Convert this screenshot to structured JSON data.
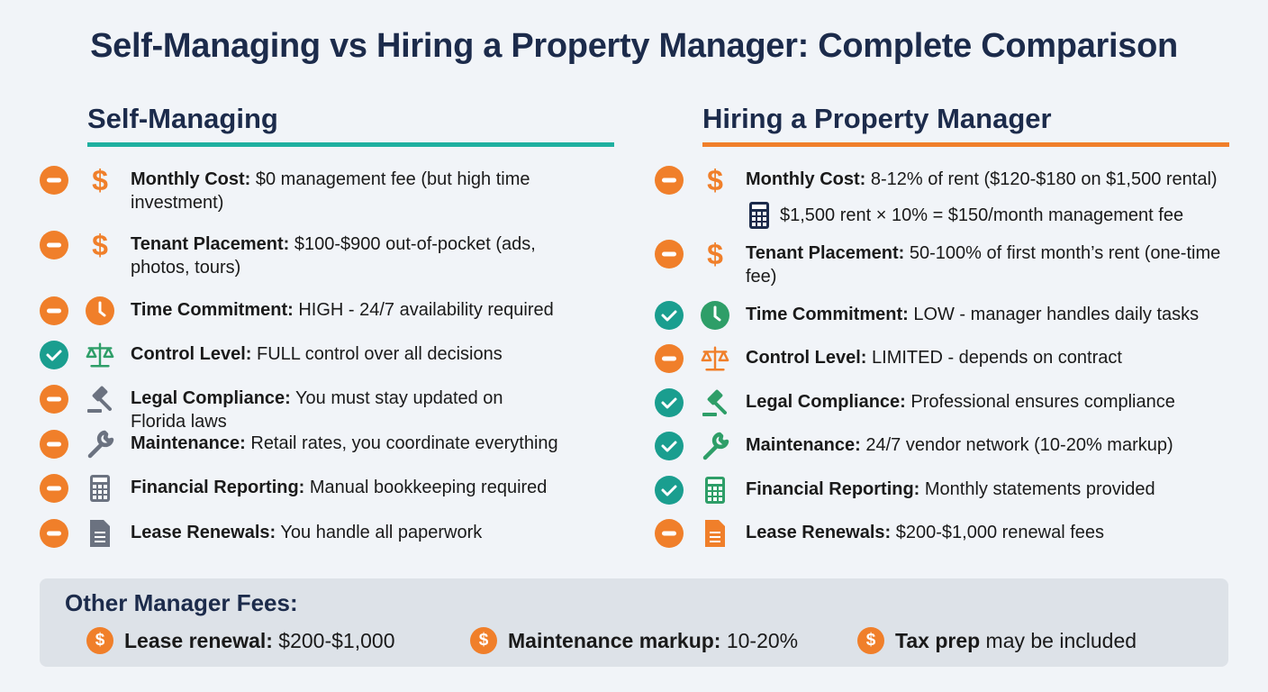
{
  "title": "Self-Managing vs Hiring a Property Manager: Complete Comparison",
  "colors": {
    "orange": "#f07f2a",
    "teal": "#1a9e8f",
    "navy": "#1c2b4b",
    "green": "#2e9e68",
    "gray": "#6b7280"
  },
  "left": {
    "heading": "Self-Managing",
    "items": [
      {
        "status": "minus",
        "icon": "dollar-icon",
        "label": "Monthly Cost:",
        "text": " $0 management fee (but high time investment)"
      },
      {
        "status": "minus",
        "icon": "dollar-icon",
        "label": "Tenant Placement:",
        "text": " $100-$900 out-of-pocket (ads, photos, tours)"
      },
      {
        "status": "minus",
        "icon": "clock-icon",
        "label": "Time Commitment:",
        "text": " HIGH - 24/7 availability required"
      },
      {
        "status": "check",
        "icon": "scale-icon",
        "label": "Control Level:",
        "text": " FULL control over all decisions"
      },
      {
        "status": "minus",
        "icon": "gavel-icon",
        "label": "Legal Compliance:",
        "text": " You must stay updated on Florida laws"
      },
      {
        "status": "minus",
        "icon": "wrench-icon",
        "label": "Maintenance:",
        "text": " Retail rates, you coordinate everything"
      },
      {
        "status": "minus",
        "icon": "calculator-icon",
        "label": "Financial Reporting:",
        "text": " Manual bookkeeping required"
      },
      {
        "status": "minus",
        "icon": "document-icon",
        "label": "Lease Renewals:",
        "text": " You handle all paperwork"
      }
    ]
  },
  "right": {
    "heading": "Hiring a Property Manager",
    "items": [
      {
        "status": "minus",
        "icon": "dollar-icon",
        "label": "Monthly Cost:",
        "text": " 8-12% of rent ($120-$180 on $1,500 rental)"
      },
      {
        "status": "minus",
        "icon": "dollar-icon",
        "label": "Tenant Placement:",
        "text": " 50-100% of first month’s rent (one-time fee)"
      },
      {
        "status": "check",
        "icon": "clock-icon",
        "label": "Time Commitment:",
        "text": " LOW - manager handles daily tasks"
      },
      {
        "status": "minus",
        "icon": "scale-icon",
        "label": "Control Level:",
        "text": " LIMITED - depends on contract"
      },
      {
        "status": "check",
        "icon": "gavel-icon",
        "label": "Legal Compliance:",
        "text": " Professional ensures compliance"
      },
      {
        "status": "check",
        "icon": "wrench-icon",
        "label": "Maintenance:",
        "text": " 24/7 vendor network (10-20% markup)"
      },
      {
        "status": "check",
        "icon": "calculator-icon",
        "label": "Financial Reporting:",
        "text": " Monthly statements provided"
      },
      {
        "status": "minus",
        "icon": "document-icon",
        "label": "Lease Renewals:",
        "text": " $200-$1,000 renewal fees"
      }
    ],
    "example": "$1,500 rent × 10% = $150/month management fee"
  },
  "other_fees": {
    "title": "Other Manager Fees:",
    "items": [
      {
        "label": "Lease renewal:",
        "text": " $200-$1,000"
      },
      {
        "label": "Maintenance markup:",
        "text": " 10-20%"
      },
      {
        "label": "Tax prep",
        "text": " may be included"
      }
    ]
  }
}
